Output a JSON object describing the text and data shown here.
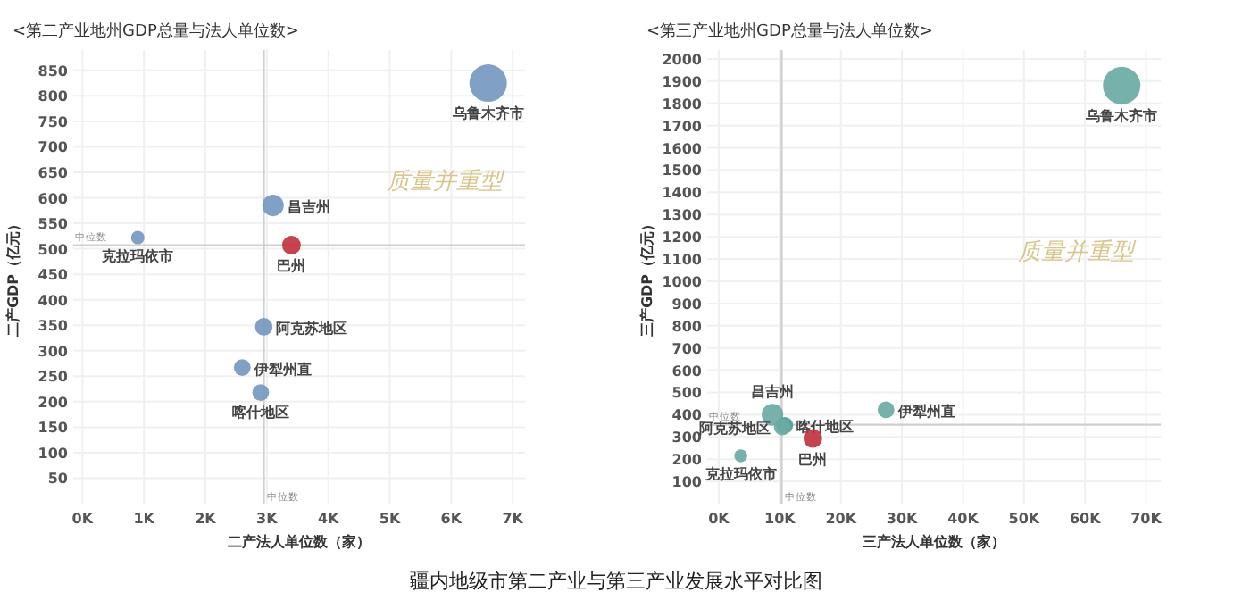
{
  "chart_data": [
    {
      "type": "bubble",
      "title": "<第二产业地州GDP总量与法人单位数>",
      "xlabel": "二产法人单位数（家）",
      "ylabel": "二产GDP（亿元）",
      "xlim": [
        -150,
        7200
      ],
      "ylim": [
        0,
        890
      ],
      "xticks": [
        {
          "value": 0,
          "label": "0K"
        },
        {
          "value": 1000,
          "label": "1K"
        },
        {
          "value": 2000,
          "label": "2K"
        },
        {
          "value": 3000,
          "label": "3K"
        },
        {
          "value": 4000,
          "label": "4K"
        },
        {
          "value": 5000,
          "label": "5K"
        },
        {
          "value": 6000,
          "label": "6K"
        },
        {
          "value": 7000,
          "label": "7K"
        }
      ],
      "yticks": [
        50,
        100,
        150,
        200,
        250,
        300,
        350,
        400,
        450,
        500,
        550,
        600,
        650,
        700,
        750,
        800,
        850
      ],
      "grid": true,
      "series": [
        {
          "name": "乌鲁木齐市",
          "color": "#7598c0",
          "x": [
            6600
          ],
          "values": [
            825
          ],
          "sizes": [
            1
          ]
        },
        {
          "name": "昌吉州",
          "color": "#7598c0",
          "x": [
            3100
          ],
          "values": [
            585
          ],
          "sizes": [
            0.33
          ]
        },
        {
          "name": "克拉玛依市",
          "color": "#7598c0",
          "x": [
            900
          ],
          "values": [
            522
          ],
          "sizes": [
            0.13
          ]
        },
        {
          "name": "巴州",
          "color": "#c0343f",
          "x": [
            3400
          ],
          "values": [
            507
          ],
          "sizes": [
            0.25
          ]
        },
        {
          "name": "阿克苏地区",
          "color": "#7598c0",
          "x": [
            2950
          ],
          "values": [
            347
          ],
          "sizes": [
            0.22
          ]
        },
        {
          "name": "伊犁州直",
          "color": "#7598c0",
          "x": [
            2600
          ],
          "values": [
            267
          ],
          "sizes": [
            0.2
          ]
        },
        {
          "name": "喀什地区",
          "color": "#7598c0",
          "x": [
            2900
          ],
          "values": [
            218
          ],
          "sizes": [
            0.2
          ]
        }
      ],
      "ref_lines": [
        {
          "axis": "x",
          "value": 2950,
          "label": "中位数"
        },
        {
          "axis": "y",
          "value": 507,
          "label": "中位数"
        }
      ],
      "annotations": [
        "质量并重型"
      ]
    },
    {
      "type": "bubble",
      "title": "<第三产业地州GDP总量与法人单位数>",
      "xlabel": "三产法人单位数（家）",
      "ylabel": "三产GDP（亿元）",
      "xlim": [
        -1900,
        72400
      ],
      "ylim": [
        0,
        2040
      ],
      "xticks": [
        {
          "value": 0,
          "label": "0K"
        },
        {
          "value": 10000,
          "label": "10K"
        },
        {
          "value": 20000,
          "label": "20K"
        },
        {
          "value": 30000,
          "label": "30K"
        },
        {
          "value": 40000,
          "label": "40K"
        },
        {
          "value": 50000,
          "label": "50K"
        },
        {
          "value": 60000,
          "label": "60K"
        },
        {
          "value": 70000,
          "label": "70K"
        }
      ],
      "yticks": [
        100,
        200,
        300,
        400,
        500,
        600,
        700,
        800,
        900,
        1000,
        1100,
        1200,
        1300,
        1400,
        1500,
        1600,
        1700,
        1800,
        1900,
        2000
      ],
      "grid": true,
      "series": [
        {
          "name": "乌鲁木齐市",
          "color": "#6aaba4",
          "x": [
            66000
          ],
          "values": [
            1880
          ],
          "sizes": [
            1
          ]
        },
        {
          "name": "昌吉州",
          "color": "#6aaba4",
          "x": [
            8800
          ],
          "values": [
            400
          ],
          "sizes": [
            0.33
          ]
        },
        {
          "name": "喀什地区",
          "color": "#4f9a92",
          "x": [
            10800
          ],
          "values": [
            352
          ],
          "sizes": [
            0.2
          ]
        },
        {
          "name": "伊犁州直",
          "color": "#6aaba4",
          "x": [
            27400
          ],
          "values": [
            422
          ],
          "sizes": [
            0.2
          ]
        },
        {
          "name": "阿克苏地区",
          "color": "#6aaba4",
          "x": [
            10400
          ],
          "values": [
            345
          ],
          "sizes": [
            0.2
          ]
        },
        {
          "name": "巴州",
          "color": "#c0343f",
          "x": [
            15400
          ],
          "values": [
            293
          ],
          "sizes": [
            0.25
          ]
        },
        {
          "name": "克拉玛依市",
          "color": "#6aaba4",
          "x": [
            3600
          ],
          "values": [
            215
          ],
          "sizes": [
            0.12
          ]
        }
      ],
      "ref_lines": [
        {
          "axis": "x",
          "value": 10300,
          "label": "中位数"
        },
        {
          "axis": "y",
          "value": 355,
          "label": "中位数"
        }
      ],
      "annotations": [
        "质量并重型",
        "疆内地级市第二产业与第三产业发展水平对比图"
      ]
    }
  ]
}
